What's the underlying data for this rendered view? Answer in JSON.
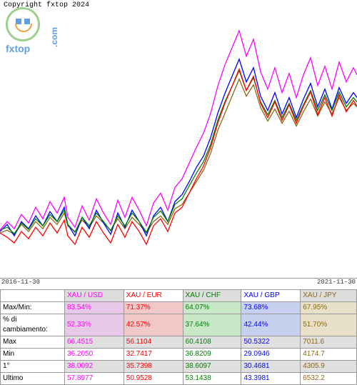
{
  "copyright": "Copyright fxtop 2024",
  "logo": {
    "text": "fxtop",
    "side": ".com"
  },
  "chart": {
    "type": "line",
    "xlabel_left": "2016-11-30",
    "xlabel_right": "2021-11-30",
    "colors": {
      "usd": "#ff00ff",
      "eur": "#ff0000",
      "chf": "#008000",
      "gbp": "#0000ff",
      "jpy": "#8b6914"
    },
    "background": "#ffffff",
    "ylim_implied": [
      30,
      70
    ],
    "line_width": 1.3
  },
  "table": {
    "headers": [
      "XAU / USD",
      "XAU / EUR",
      "XAU / CHF",
      "XAU / GBP",
      "XAU / JPY"
    ],
    "header_colors": [
      "#ff00ff",
      "#ff0000",
      "#008000",
      "#0000ff",
      "#8b6914"
    ],
    "rows": [
      {
        "label": "Max/Min:",
        "vals": [
          "83.54%",
          "71.37%",
          "64.07%",
          "73.68%",
          "67.95%"
        ],
        "bg": [
          "#e8c8e8",
          "#f0c8c8",
          "#c8e8c8",
          "#c8d0f0",
          "#e8e0c8"
        ]
      },
      {
        "label": "% di cambiamento:",
        "vals": [
          "52.33%",
          "42.57%",
          "37.64%",
          "42.44%",
          "51.70%"
        ],
        "bg": [
          "#e8c8e8",
          "#f0c8c8",
          "#c8e8c8",
          "#c8d0f0",
          "#e8e0c8"
        ]
      },
      {
        "label": "Max",
        "vals": [
          "66.4515",
          "56.1104",
          "60.4108",
          "50.5322",
          "7011.6"
        ],
        "bg": [
          "#e0e0e0",
          "#e0e0e0",
          "#e0e0e0",
          "#e0e0e0",
          "#e0e0e0"
        ]
      },
      {
        "label": "Min",
        "vals": [
          "36.2050",
          "32.7417",
          "36.8209",
          "29.0946",
          "4174.7"
        ],
        "bg": [
          "#ffffff",
          "#ffffff",
          "#ffffff",
          "#ffffff",
          "#ffffff"
        ]
      },
      {
        "label": "1°",
        "vals": [
          "38.0092",
          "35.7398",
          "38.6097",
          "30.4681",
          "4305.9"
        ],
        "bg": [
          "#e0e0e0",
          "#e0e0e0",
          "#e0e0e0",
          "#e0e0e0",
          "#e0e0e0"
        ]
      },
      {
        "label": "Ultimo",
        "vals": [
          "57.8977",
          "50.9528",
          "53.1438",
          "43.3981",
          "6532.2"
        ],
        "bg": [
          "#ffffff",
          "#ffffff",
          "#ffffff",
          "#ffffff",
          "#ffffff"
        ]
      }
    ]
  }
}
